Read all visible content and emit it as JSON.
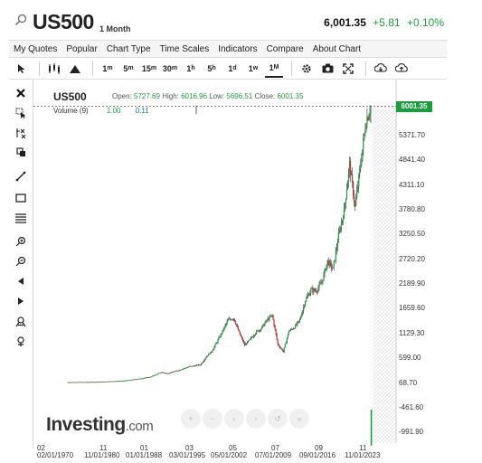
{
  "header": {
    "symbol": "US500",
    "period": "1 Month",
    "last": "6,001.35",
    "change": "+5.81",
    "change_pct": "+0.10%"
  },
  "menu": [
    "My Quotes",
    "Popular",
    "Chart Type",
    "Time Scales",
    "Indicators",
    "Compare",
    "About Chart"
  ],
  "timeframes": [
    {
      "n": "1",
      "u": "m"
    },
    {
      "n": "5",
      "u": "m"
    },
    {
      "n": "15",
      "u": "m"
    },
    {
      "n": "30",
      "u": "m"
    },
    {
      "n": "1",
      "u": "h"
    },
    {
      "n": "5",
      "u": "h"
    },
    {
      "n": "1",
      "u": "d"
    },
    {
      "n": "1",
      "u": "w"
    },
    {
      "n": "1",
      "u": "M"
    }
  ],
  "active_timeframe": "1M",
  "chart": {
    "title": "US500",
    "open_label": "Open:",
    "open": "5727.69",
    "high_label": "High:",
    "high": "6016.96",
    "low_label": "Low:",
    "low": "5696.51",
    "close_label": "Close:",
    "close": "6001.35",
    "volume_label": "Volume (9)",
    "volume_v1": "1.00",
    "volume_v2": "0.11",
    "current_price": "6001.35"
  },
  "chart_data": {
    "type": "candlestick",
    "y_ticks": [
      "5371.70",
      "4841.40",
      "4311.10",
      "3780.80",
      "3250.50",
      "2720.20",
      "2189.90",
      "1659.60",
      "1129.30",
      "599.00",
      "68.70",
      "-461.60",
      "-991.90"
    ],
    "ylim": [
      -991.9,
      6001.35
    ],
    "x_ticks_top": [
      "02",
      "11",
      "01",
      "03",
      "05",
      "07",
      "09",
      "11"
    ],
    "x_ticks_bottom": [
      "02/01/1970",
      "11/01/1980",
      "01/01/1988",
      "03/01/1995",
      "05/01/2002",
      "07/01/2009",
      "09/01/2016",
      "11/01/2023"
    ],
    "series_points": [
      [
        1970,
        85
      ],
      [
        1975,
        90
      ],
      [
        1980,
        115
      ],
      [
        1983,
        160
      ],
      [
        1985,
        200
      ],
      [
        1987,
        300
      ],
      [
        1988,
        270
      ],
      [
        1990,
        340
      ],
      [
        1992,
        420
      ],
      [
        1994,
        460
      ],
      [
        1995,
        620
      ],
      [
        1996,
        740
      ],
      [
        1997,
        950
      ],
      [
        1998,
        1180
      ],
      [
        1999,
        1420
      ],
      [
        2000,
        1460
      ],
      [
        2001,
        1150
      ],
      [
        2002,
        880
      ],
      [
        2003,
        1000
      ],
      [
        2004,
        1150
      ],
      [
        2005,
        1240
      ],
      [
        2006,
        1410
      ],
      [
        2007,
        1520
      ],
      [
        2008,
        900
      ],
      [
        2009,
        740
      ],
      [
        2010,
        1180
      ],
      [
        2011,
        1260
      ],
      [
        2012,
        1420
      ],
      [
        2013,
        1840
      ],
      [
        2014,
        2060
      ],
      [
        2015,
        2050
      ],
      [
        2016,
        2240
      ],
      [
        2017,
        2680
      ],
      [
        2018,
        2510
      ],
      [
        2019,
        3230
      ],
      [
        2020,
        3760
      ],
      [
        2021,
        4760
      ],
      [
        2022,
        3840
      ],
      [
        2023,
        4770
      ],
      [
        2024,
        5700
      ],
      [
        2024.9,
        6001
      ]
    ]
  },
  "brand": {
    "name": "Investing",
    "suffix": ".com"
  }
}
